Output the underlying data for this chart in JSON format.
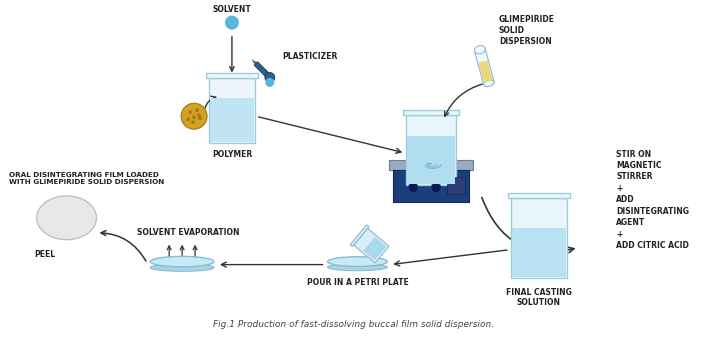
{
  "title": "Fig.1 Production of fast-dissolving buccal film solid dispersion.",
  "background_color": "#ffffff",
  "labels": {
    "solvent": "SOLVENT",
    "plasticizer": "PLASTICIZER",
    "polymer": "POLYMER",
    "glimepiride": "GLIMEPIRIDE\nSOLID\nDISPERSION",
    "stir": "STIR ON\nMAGNETIC\nSTIRRER\n+\nADD\nDISINTEGRATING\nAGENT\n+\nADD CITRIC ACID",
    "final_casting": "FINAL CASTING\nSOLUTION",
    "pour": "POUR IN A PETRI PLATE",
    "solvent_evap": "SOLVENT EVAPORATION",
    "peel": "PEEL",
    "oral_film": "ORAL DISINTEGRATING FILM LOADED\nWITH GLIMEPIRIDE SOLID DISPERSION"
  },
  "label_fontsize": 5.5,
  "arrow_color": "#333333",
  "text_color": "#222222"
}
